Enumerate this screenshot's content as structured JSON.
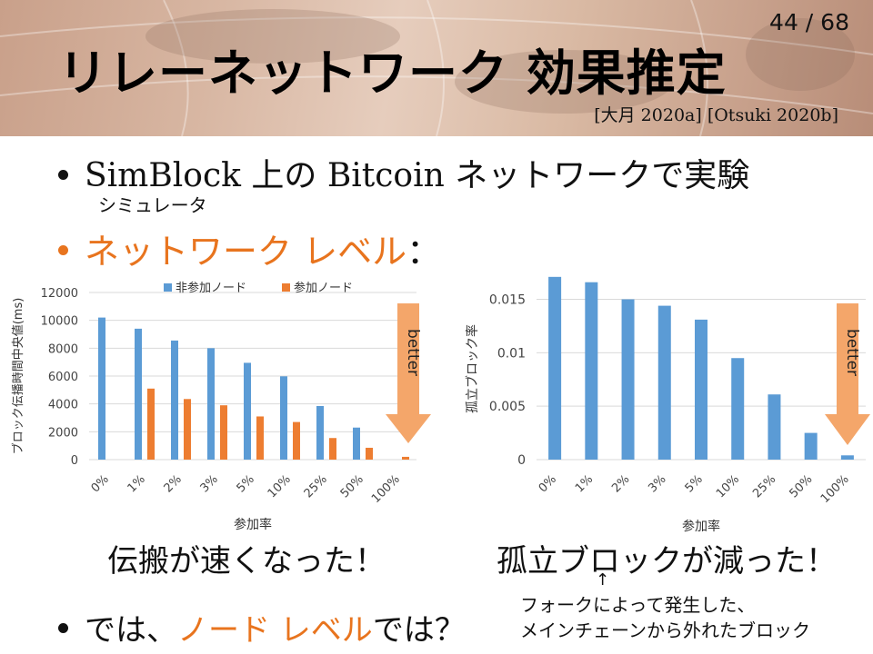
{
  "header": {
    "page_number": "44 / 68",
    "title": "リレーネットワーク 効果推定",
    "citation": "[大月 2020a] [Otsuki 2020b]"
  },
  "bullets": {
    "b1_text": "SimBlock 上の Bitcoin ネットワークで実験",
    "b1_sub": "シミュレータ",
    "b2_text": "ネットワーク レベル",
    "b2_colon": "：",
    "b3_prefix": "では、",
    "b3_highlight": "ノード レベル",
    "b3_suffix": "では？"
  },
  "notes": {
    "left_caption": "伝搬が速くなった！",
    "right_caption": "孤立ブロックが減った！",
    "pointer": "↑",
    "explanation_line1": "フォークによって発生した、",
    "explanation_line2": "メインチェーンから外れたブロック"
  },
  "colors": {
    "blue": "#5b9bd5",
    "orange": "#ed7d31",
    "arrow": "#f4a66a",
    "highlight": "#e8741e"
  },
  "chart_data": [
    {
      "type": "bar",
      "categories": [
        "0%",
        "1%",
        "2%",
        "3%",
        "5%",
        "10%",
        "25%",
        "50%",
        "100%"
      ],
      "series": [
        {
          "name": "非参加ノード",
          "values": [
            10200,
            9400,
            8550,
            8000,
            6950,
            5980,
            3850,
            2300,
            null
          ]
        },
        {
          "name": "参加ノード",
          "values": [
            null,
            5100,
            4350,
            3900,
            3100,
            2700,
            1550,
            850,
            200
          ]
        }
      ],
      "xlabel": "参加率",
      "ylabel": "ブロック伝播時間中央値(ms)",
      "ylim": [
        0,
        12000
      ],
      "yticks": [
        "0",
        "2000",
        "4000",
        "6000",
        "8000",
        "10000",
        "12000"
      ],
      "grid": true,
      "legend": "top",
      "annotation": "better"
    },
    {
      "type": "bar",
      "categories": [
        "0%",
        "1%",
        "2%",
        "3%",
        "5%",
        "10%",
        "25%",
        "50%",
        "100%"
      ],
      "series": [
        {
          "values": [
            0.0171,
            0.0166,
            0.015,
            0.0144,
            0.0131,
            0.0095,
            0.0061,
            0.0025,
            0.0004
          ]
        }
      ],
      "xlabel": "参加率",
      "ylabel": "孤立ブロック率",
      "ylim": [
        0,
        0.017
      ],
      "yticks": [
        "0",
        "0.005",
        "0.01",
        "0.015"
      ],
      "grid": true,
      "annotation": "better"
    }
  ]
}
